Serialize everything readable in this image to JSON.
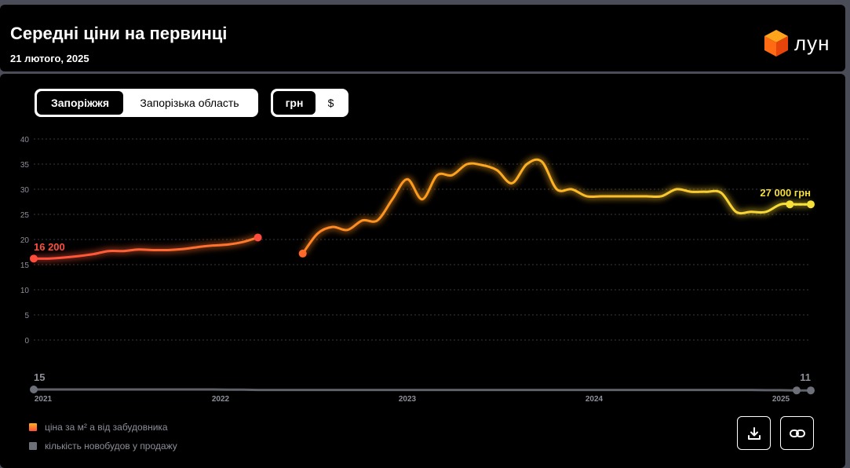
{
  "header": {
    "title": "Середні ціни на первинці",
    "date": "21 лютого, 2025",
    "logo_text": "лун"
  },
  "controls": {
    "region_options": [
      {
        "label": "Запоріжжя",
        "active": true
      },
      {
        "label": "Запорізька область",
        "active": false
      }
    ],
    "currency_options": [
      {
        "label": "грн",
        "active": true
      },
      {
        "label": "$",
        "active": false
      }
    ]
  },
  "legend": {
    "price": "ціна за м² а від забудовника",
    "count": "кількість новобудов у продажу"
  },
  "actions": {
    "download_icon": "download-icon",
    "link_icon": "link-icon"
  },
  "colors": {
    "price_start": "#ff4d3d",
    "price_mid": "#ff9c1a",
    "price_end": "#f7e03a",
    "count_line": "#5f6169",
    "grid": "#3a3a3a"
  },
  "chart_data": {
    "type": "line",
    "y_ticks": [
      "0",
      "5",
      "10",
      "15",
      "20",
      "25",
      "30",
      "35",
      "40"
    ],
    "ylim": [
      0,
      40
    ],
    "x_ticks": [
      "2021",
      "2022",
      "2023",
      "2024",
      "2025"
    ],
    "grid": true,
    "price_series": {
      "unit": "thousand UAH per m²",
      "segments": [
        [
          {
            "x": "2021-01",
            "y": 16.2
          },
          {
            "x": "2021-02",
            "y": 16.2
          },
          {
            "x": "2021-03",
            "y": 16.4
          },
          {
            "x": "2021-04",
            "y": 16.7
          },
          {
            "x": "2021-05",
            "y": 17.1
          },
          {
            "x": "2021-06",
            "y": 17.7
          },
          {
            "x": "2021-07",
            "y": 17.7
          },
          {
            "x": "2021-08",
            "y": 18.0
          },
          {
            "x": "2021-09",
            "y": 17.9
          },
          {
            "x": "2021-10",
            "y": 17.9
          },
          {
            "x": "2021-11",
            "y": 18.1
          },
          {
            "x": "2021-12",
            "y": 18.5
          },
          {
            "x": "2022-01",
            "y": 18.8
          },
          {
            "x": "2022-02",
            "y": 19.0
          },
          {
            "x": "2022-03",
            "y": 19.5
          },
          {
            "x": "2022-04",
            "y": 20.4
          }
        ],
        [
          {
            "x": "2022-07",
            "y": 17.2
          },
          {
            "x": "2022-08",
            "y": 21.2
          },
          {
            "x": "2022-09",
            "y": 22.5
          },
          {
            "x": "2022-10",
            "y": 21.9
          },
          {
            "x": "2022-11",
            "y": 23.8
          },
          {
            "x": "2022-12",
            "y": 23.8
          },
          {
            "x": "2023-01",
            "y": 28.0
          },
          {
            "x": "2023-02",
            "y": 32.0
          },
          {
            "x": "2023-03",
            "y": 28.0
          },
          {
            "x": "2023-04",
            "y": 32.8
          },
          {
            "x": "2023-05",
            "y": 32.8
          },
          {
            "x": "2023-06",
            "y": 35.0
          },
          {
            "x": "2023-07",
            "y": 34.8
          },
          {
            "x": "2023-08",
            "y": 33.8
          },
          {
            "x": "2023-09",
            "y": 31.2
          },
          {
            "x": "2023-10",
            "y": 35.0
          },
          {
            "x": "2023-11",
            "y": 35.5
          },
          {
            "x": "2023-12",
            "y": 30.0
          },
          {
            "x": "2024-01",
            "y": 30.0
          },
          {
            "x": "2024-02",
            "y": 28.6
          },
          {
            "x": "2024-03",
            "y": 28.6
          },
          {
            "x": "2024-04",
            "y": 28.6
          },
          {
            "x": "2024-05",
            "y": 28.6
          },
          {
            "x": "2024-06",
            "y": 28.6
          },
          {
            "x": "2024-07",
            "y": 28.6
          },
          {
            "x": "2024-08",
            "y": 30.0
          },
          {
            "x": "2024-09",
            "y": 29.5
          },
          {
            "x": "2024-10",
            "y": 29.5
          },
          {
            "x": "2024-11",
            "y": 29.3
          },
          {
            "x": "2024-12",
            "y": 25.5
          },
          {
            "x": "2025-01",
            "y": 25.5
          },
          {
            "x": "2025-02",
            "y": 25.5
          },
          {
            "x": "2025-03",
            "y": 27.0
          },
          {
            "x": "2025-04",
            "y": 27.0
          },
          {
            "x": "2025-05",
            "y": 27.0
          }
        ]
      ],
      "start_label": "16 200",
      "end_label": "27 000 грн"
    },
    "count_series": {
      "start_label": "15",
      "end_label": "11",
      "values": [
        15,
        15,
        15,
        15,
        15,
        15,
        15,
        15,
        15,
        15,
        15,
        15,
        15,
        14,
        14,
        13,
        13,
        13,
        13,
        13,
        13,
        13,
        13,
        13,
        13,
        13,
        13,
        13,
        13,
        13,
        13,
        13,
        13,
        13,
        13,
        13,
        13,
        13,
        13,
        13,
        13,
        13,
        13,
        13,
        13,
        13,
        13,
        13,
        13,
        12,
        12,
        11,
        11
      ]
    }
  }
}
